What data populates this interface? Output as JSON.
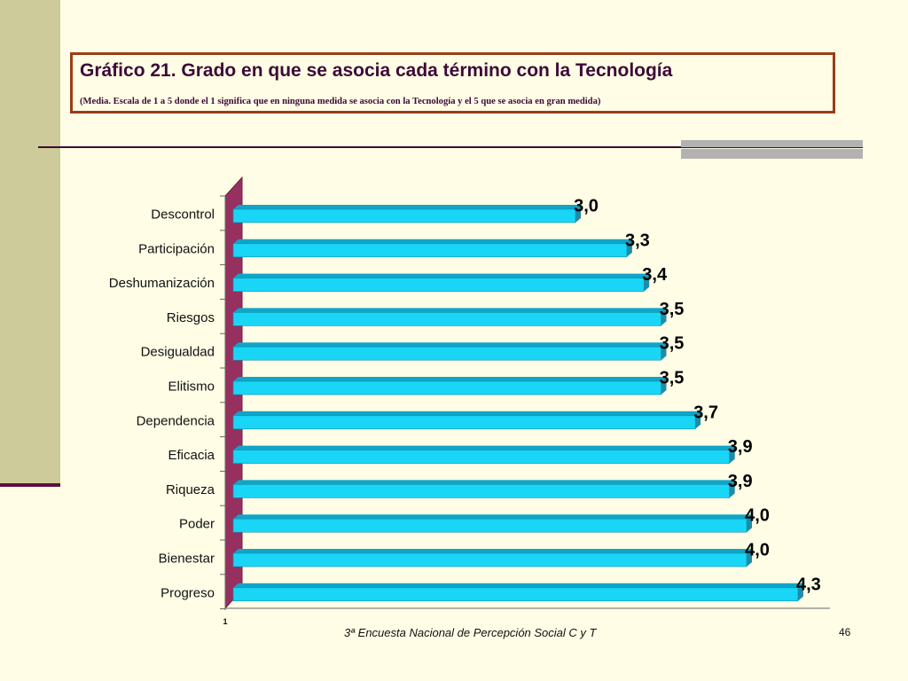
{
  "slide": {
    "title": "Gráfico 21. Grado en que se asocia cada término con la Tecnología",
    "subtitle": "(Media. Escala de 1 a 5 donde el 1 significa que en ninguna medida se asocia con la Tecnología y el 5 que se asocia en gran medida)",
    "footer": "3ª Encuesta Nacional de Percepción Social C y T",
    "page_number": "46"
  },
  "colors": {
    "background": "#FFFDE5",
    "bar_face": "#19D6F7",
    "bar_top": "#0FA5C8",
    "bar_end": "#1F8CA6",
    "wall": "#96305F",
    "title_border": "#9A3D17"
  },
  "chart_data": {
    "type": "bar",
    "orientation": "horizontal",
    "categories": [
      "Descontrol",
      "Participación",
      "Deshumanización",
      "Riesgos",
      "Desigualdad",
      "Elitismo",
      "Dependencia",
      "Eficacia",
      "Riqueza",
      "Poder",
      "Bienestar",
      "Progreso"
    ],
    "values": [
      3.0,
      3.3,
      3.4,
      3.5,
      3.5,
      3.5,
      3.7,
      3.9,
      3.9,
      4.0,
      4.0,
      4.3
    ],
    "data_labels": [
      "3,0",
      "3,3",
      "3,4",
      "3,5",
      "3,5",
      "3,5",
      "3,7",
      "3,9",
      "3,9",
      "4,0",
      "4,0",
      "4,3"
    ],
    "x_tick_labels": [
      "1"
    ],
    "xlim": [
      1,
      4.5
    ],
    "grid": false,
    "legend": false
  }
}
